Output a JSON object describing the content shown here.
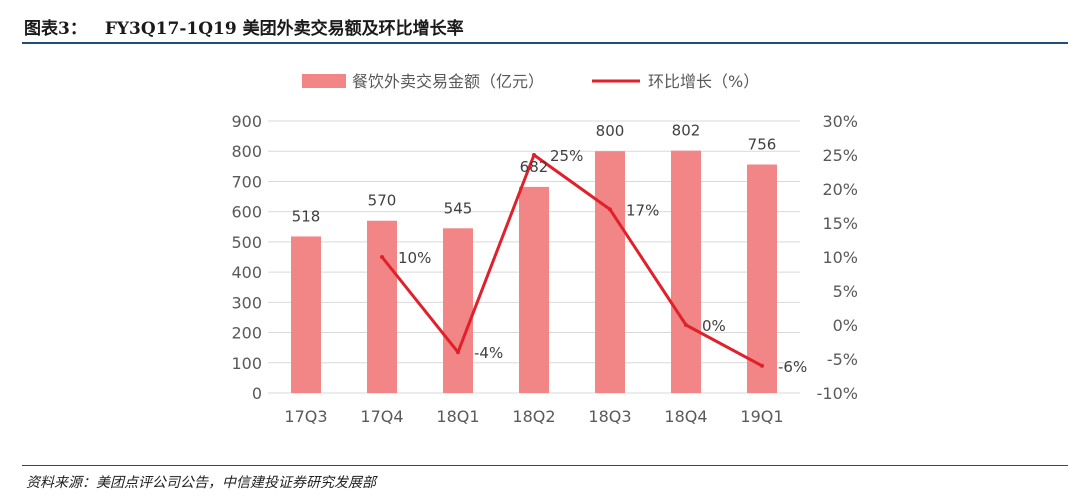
{
  "figure": {
    "label": "图表3：",
    "title": "FY3Q17-1Q19 美团外卖交易额及环比增长率",
    "source": "资料来源：美团点评公司公告，中信建投证券研究发展部"
  },
  "colors": {
    "bar": "#f28585",
    "line": "#e0202a",
    "axis_text": "#595959",
    "rule": "#1f4e79",
    "grid": "#d9d9d9"
  },
  "chart_data": {
    "type": "bar",
    "categories": [
      "17Q3",
      "17Q4",
      "18Q1",
      "18Q2",
      "18Q3",
      "18Q4",
      "19Q1"
    ],
    "series": [
      {
        "name": "餐饮外卖交易金额（亿元）",
        "type": "bar",
        "axis": "left",
        "values": [
          518,
          570,
          545,
          682,
          800,
          802,
          756
        ],
        "labels": [
          "518",
          "570",
          "545",
          "682",
          "800",
          "802",
          "756"
        ]
      },
      {
        "name": "环比增长（%）",
        "type": "line",
        "axis": "right",
        "values": [
          null,
          10,
          -4,
          25,
          17,
          0,
          -6
        ],
        "labels": [
          "",
          "10%",
          "-4%",
          "25%",
          "17%",
          "0%",
          "-6%"
        ]
      }
    ],
    "left_axis": {
      "ylim": [
        0,
        900
      ],
      "ticks": [
        0,
        100,
        200,
        300,
        400,
        500,
        600,
        700,
        800,
        900
      ],
      "tick_labels": [
        "0",
        "100",
        "200",
        "300",
        "400",
        "500",
        "600",
        "700",
        "800",
        "900"
      ]
    },
    "right_axis": {
      "ylim": [
        -10,
        30
      ],
      "ticks": [
        -10,
        -5,
        0,
        5,
        10,
        15,
        20,
        25,
        30
      ],
      "tick_labels": [
        "-10%",
        "-5%",
        "0%",
        "5%",
        "10%",
        "15%",
        "20%",
        "25%",
        "30%"
      ]
    },
    "grid": true,
    "legend": "top"
  }
}
